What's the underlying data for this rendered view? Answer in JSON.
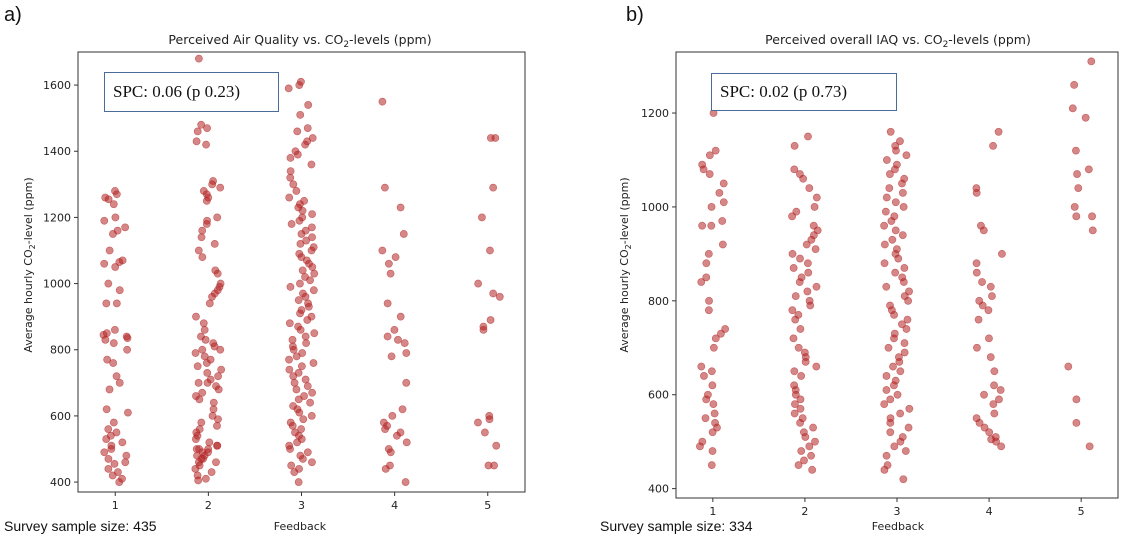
{
  "panels": [
    {
      "letter": "a)",
      "title_main": "Perceived Air Quality vs. CO",
      "title_sub": "2",
      "title_end": "-levels (ppm)",
      "ylabel_main": "Average hourly CO",
      "ylabel_sub": "2",
      "ylabel_end": "-level (ppm)",
      "xlabel": "Feedback",
      "spc": "SPC: 0.06 (p 0.23)",
      "sample_size": "Survey sample size: 435",
      "yticks": [
        "400",
        "600",
        "800",
        "1000",
        "1200",
        "1400",
        "1600"
      ],
      "xticks": [
        "1",
        "2",
        "3",
        "4",
        "5"
      ]
    },
    {
      "letter": "b)",
      "title_main": "Perceived overall IAQ vs. CO",
      "title_sub": "2",
      "title_end": "-levels (ppm)",
      "ylabel_main": "Average hourly CO",
      "ylabel_sub": "2",
      "ylabel_end": "-level (ppm)",
      "xlabel": "Feedback",
      "spc": "SPC: 0.02 (p 0.73)",
      "sample_size": "Survey sample size: 334",
      "yticks": [
        "400",
        "600",
        "800",
        "1000",
        "1200"
      ],
      "xticks": [
        "1",
        "2",
        "3",
        "4",
        "5"
      ]
    }
  ],
  "chart_data": [
    {
      "type": "scatter",
      "title": "Perceived Air Quality vs. CO2-levels (ppm)",
      "xlabel": "Feedback",
      "ylabel": "Average hourly CO2-level (ppm)",
      "xlim": [
        0.6,
        5.4
      ],
      "ylim": [
        370,
        1700
      ],
      "grid": false,
      "marker_color": "#b22222",
      "marker_alpha": 0.55,
      "jitter_note": "points are horizontally jittered around each feedback level",
      "groups": [
        {
          "x": 1,
          "y": [
            1280,
            1270,
            1260,
            1255,
            1240,
            1200,
            1190,
            1170,
            1160,
            1150,
            1100,
            1070,
            1065,
            1060,
            1050,
            1000,
            980,
            940,
            940,
            860,
            850,
            845,
            840,
            835,
            830,
            820,
            800,
            770,
            760,
            720,
            700,
            680,
            620,
            610,
            580,
            560,
            550,
            540,
            530,
            520,
            510,
            500,
            490,
            480,
            470,
            460,
            455,
            440,
            430,
            420,
            410,
            400
          ]
        },
        {
          "x": 2,
          "y": [
            1680,
            1480,
            1470,
            1460,
            1430,
            1420,
            1310,
            1300,
            1290,
            1280,
            1270,
            1260,
            1250,
            1200,
            1190,
            1180,
            1160,
            1140,
            1120,
            1100,
            1080,
            1040,
            1030,
            1000,
            990,
            980,
            970,
            960,
            940,
            900,
            880,
            860,
            840,
            830,
            820,
            810,
            800,
            800,
            790,
            780,
            770,
            760,
            750,
            740,
            730,
            720,
            710,
            700,
            700,
            690,
            680,
            670,
            660,
            650,
            640,
            620,
            600,
            590,
            580,
            570,
            560,
            550,
            540,
            530,
            520,
            510,
            510,
            500,
            500,
            500,
            490,
            490,
            480,
            480,
            470,
            470,
            460,
            460,
            450,
            440,
            430,
            420,
            410,
            405
          ]
        },
        {
          "x": 3,
          "y": [
            1610,
            1600,
            1590,
            1540,
            1510,
            1470,
            1460,
            1440,
            1430,
            1420,
            1400,
            1390,
            1380,
            1360,
            1340,
            1320,
            1300,
            1280,
            1260,
            1250,
            1240,
            1230,
            1220,
            1210,
            1200,
            1190,
            1180,
            1170,
            1160,
            1150,
            1140,
            1130,
            1120,
            1110,
            1100,
            1090,
            1080,
            1070,
            1060,
            1050,
            1040,
            1030,
            1020,
            1010,
            1000,
            990,
            980,
            970,
            960,
            950,
            940,
            930,
            920,
            910,
            900,
            890,
            880,
            870,
            860,
            850,
            840,
            830,
            820,
            810,
            800,
            790,
            780,
            770,
            760,
            750,
            740,
            730,
            720,
            710,
            700,
            690,
            680,
            670,
            660,
            650,
            640,
            630,
            620,
            610,
            600,
            590,
            580,
            570,
            560,
            550,
            540,
            530,
            520,
            510,
            500,
            490,
            480,
            470,
            460,
            450,
            440,
            430,
            400
          ]
        },
        {
          "x": 4,
          "y": [
            1550,
            1290,
            1230,
            1150,
            1100,
            1080,
            1060,
            1030,
            940,
            900,
            860,
            840,
            830,
            820,
            790,
            780,
            700,
            620,
            600,
            580,
            570,
            560,
            550,
            540,
            520,
            500,
            490,
            450,
            440,
            400
          ]
        },
        {
          "x": 5,
          "y": [
            1440,
            1440,
            1290,
            1200,
            1100,
            1000,
            970,
            960,
            890,
            870,
            860,
            600,
            590,
            580,
            550,
            510,
            450,
            450
          ]
        }
      ]
    },
    {
      "type": "scatter",
      "title": "Perceived overall IAQ vs. CO2-levels (ppm)",
      "xlabel": "Feedback",
      "ylabel": "Average hourly CO2-level (ppm)",
      "xlim": [
        0.6,
        5.4
      ],
      "ylim": [
        380,
        1330
      ],
      "grid": false,
      "marker_color": "#b22222",
      "marker_alpha": 0.55,
      "jitter_note": "points are horizontally jittered around each feedback level",
      "groups": [
        {
          "x": 1,
          "y": [
            1200,
            1120,
            1110,
            1090,
            1080,
            1070,
            1050,
            1030,
            1010,
            1000,
            970,
            960,
            960,
            920,
            900,
            880,
            850,
            840,
            800,
            780,
            740,
            730,
            720,
            700,
            660,
            650,
            640,
            620,
            600,
            590,
            580,
            560,
            550,
            540,
            530,
            520,
            500,
            490,
            480,
            450
          ]
        },
        {
          "x": 2,
          "y": [
            1220,
            1150,
            1130,
            1080,
            1070,
            1060,
            1040,
            1020,
            1000,
            990,
            980,
            960,
            950,
            940,
            930,
            920,
            910,
            900,
            890,
            880,
            870,
            860,
            850,
            840,
            830,
            820,
            810,
            800,
            790,
            780,
            770,
            760,
            740,
            720,
            700,
            690,
            680,
            670,
            660,
            650,
            640,
            620,
            610,
            600,
            590,
            580,
            570,
            560,
            550,
            540,
            530,
            520,
            510,
            500,
            490,
            480,
            470,
            460,
            450,
            440
          ]
        },
        {
          "x": 3,
          "y": [
            1160,
            1140,
            1130,
            1120,
            1110,
            1100,
            1090,
            1080,
            1070,
            1060,
            1050,
            1040,
            1030,
            1020,
            1010,
            1000,
            990,
            980,
            970,
            960,
            950,
            940,
            930,
            920,
            910,
            900,
            890,
            880,
            870,
            860,
            850,
            840,
            830,
            820,
            810,
            800,
            790,
            780,
            770,
            760,
            750,
            740,
            730,
            720,
            710,
            700,
            690,
            680,
            670,
            660,
            650,
            640,
            630,
            620,
            610,
            600,
            590,
            580,
            570,
            560,
            550,
            540,
            530,
            520,
            510,
            500,
            490,
            480,
            470,
            450,
            440,
            420
          ]
        },
        {
          "x": 4,
          "y": [
            1160,
            1130,
            1040,
            1030,
            960,
            950,
            900,
            880,
            860,
            840,
            830,
            810,
            800,
            790,
            780,
            760,
            720,
            700,
            680,
            650,
            620,
            610,
            600,
            590,
            580,
            560,
            550,
            540,
            530,
            520,
            510,
            505,
            500,
            490
          ]
        },
        {
          "x": 5,
          "y": [
            1310,
            1260,
            1210,
            1190,
            1120,
            1080,
            1070,
            1040,
            1000,
            980,
            980,
            950,
            660,
            590,
            540,
            490
          ]
        }
      ]
    }
  ]
}
